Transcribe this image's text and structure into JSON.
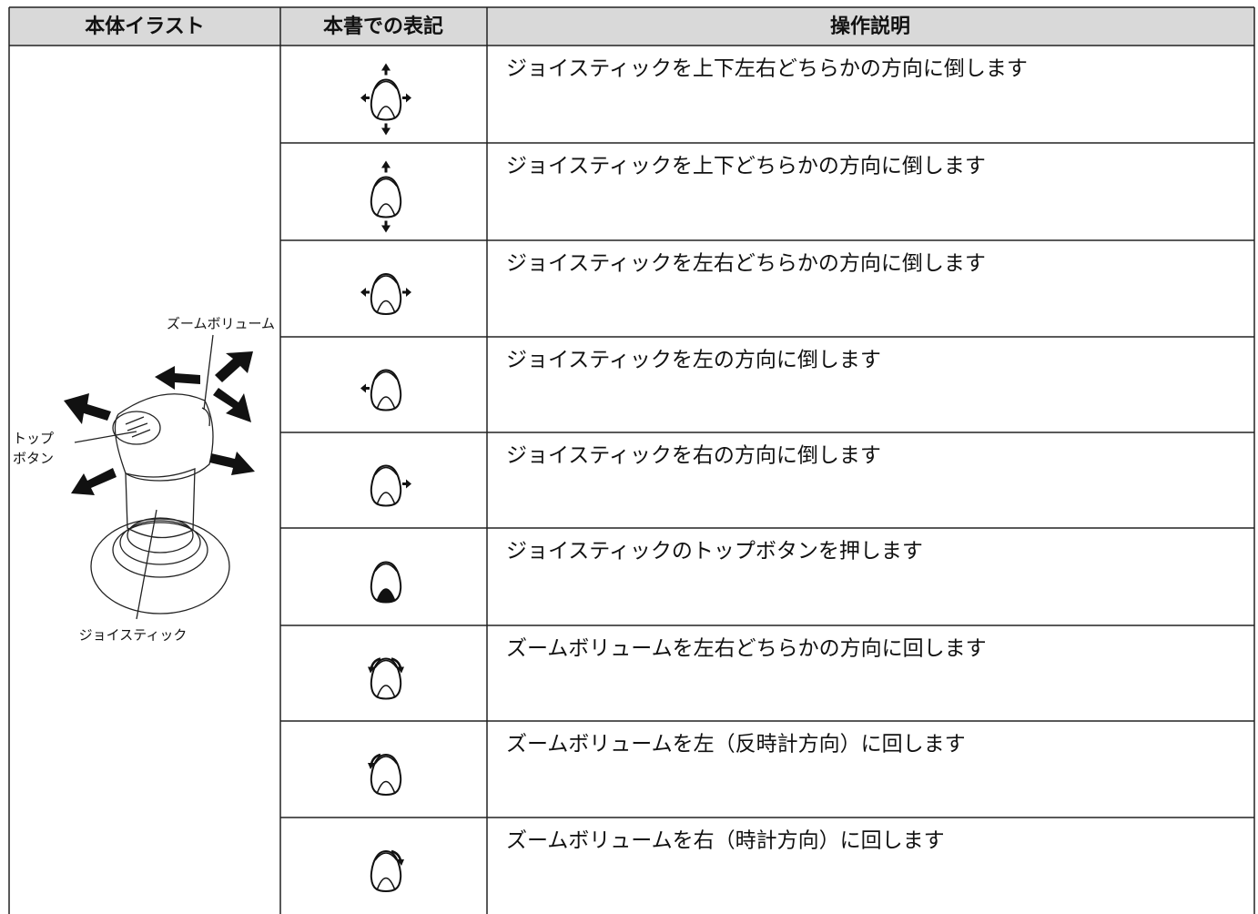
{
  "table": {
    "headers": [
      "本体イラスト",
      "本書での表記",
      "操作説明"
    ],
    "rows": [
      "ジョイスティックを上下左右どちらかの方向に倒します",
      "ジョイスティックを上下どちらかの方向に倒します",
      "ジョイスティックを左右どちらかの方向に倒します",
      "ジョイスティックを左の方向に倒します",
      "ジョイスティックを右の方向に倒します",
      "ジョイスティックのトップボタンを押します",
      "ズームボリュームを左右どちらかの方向に回します",
      "ズームボリュームを左（反時計方向）に回します",
      "ズームボリュームを右（時計方向）に回します"
    ]
  },
  "illustration": {
    "zoom_label": "ズームボリューム",
    "top_button_label": [
      "トップ",
      "ボタン"
    ],
    "joystick_label": "ジョイスティック"
  }
}
